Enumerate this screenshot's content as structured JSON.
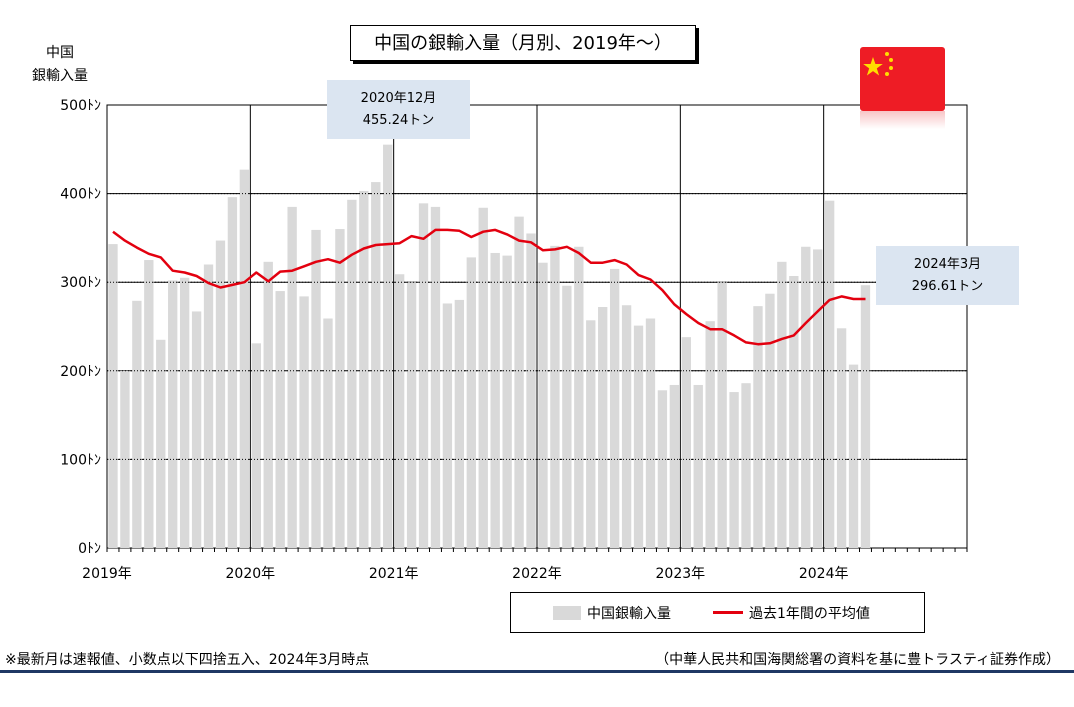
{
  "title": "中国の銀輸入量（月別、2019年～）",
  "ylabel_line1": "中国",
  "ylabel_line2": "銀輸入量",
  "callout_peak": {
    "line1": "2020年12月",
    "line2": "455.24トン"
  },
  "callout_latest": {
    "line1": "2024年3月",
    "line2": "296.61トン"
  },
  "legend": {
    "bars": "中国銀輸入量",
    "line": "過去1年間の平均値"
  },
  "footnote": "※最新月は速報値、小数点以下四捨五入、2024年3月時点",
  "source": "（中華人民共和国海関総署の資料を基に豊トラスティ証券作成）",
  "colors": {
    "bars": "#d9d9d9",
    "line": "#e3000f",
    "callout": "#dbe5f1",
    "flag": "#ee1c25",
    "star": "#ffde00",
    "rule": "#1f3864"
  },
  "icon": "china-flag",
  "chart_data": {
    "type": "bar",
    "x_tick_labels": [
      "2019年",
      "2020年",
      "2021年",
      "2022年",
      "2023年",
      "2024年"
    ],
    "y_tick_labels": [
      "0ﾄﾝ",
      "100ﾄﾝ",
      "200ﾄﾝ",
      "300ﾄﾝ",
      "400ﾄﾝ",
      "500ﾄﾝ"
    ],
    "ylim": [
      0,
      500
    ],
    "x_range_months": [
      "2019-01",
      "2024-12"
    ],
    "grid": true,
    "legend_position": "bottom-right",
    "series": [
      {
        "name": "中国銀輸入量",
        "type": "bar",
        "values": [
          343,
          200,
          279,
          325,
          235,
          302,
          305,
          267,
          320,
          347,
          396,
          427,
          231,
          323,
          290,
          385,
          284,
          359,
          259,
          360,
          393,
          403,
          413,
          455.24,
          309,
          300,
          389,
          385,
          276,
          280,
          328,
          384,
          333,
          330,
          374,
          355,
          322,
          341,
          296,
          340,
          257,
          272,
          315,
          274,
          251,
          259,
          178,
          184,
          238,
          184,
          256,
          300,
          176,
          186,
          273,
          287,
          323,
          307,
          340,
          337,
          392,
          248,
          207,
          296.61
        ]
      },
      {
        "name": "過去1年間の平均値",
        "type": "line",
        "values": [
          357,
          347,
          339,
          332,
          328,
          313,
          311,
          307,
          299,
          294,
          297,
          300,
          311,
          301,
          312,
          313,
          318,
          323,
          326,
          322,
          331,
          338,
          342,
          343,
          344,
          352,
          349,
          359,
          359,
          358,
          351,
          357,
          359,
          354,
          347,
          345,
          336,
          337,
          340,
          333,
          322,
          322,
          325,
          320,
          308,
          303,
          291,
          275,
          264,
          254,
          247,
          247,
          240,
          232,
          230,
          231,
          236,
          240,
          254,
          267,
          280,
          284,
          281,
          281
        ]
      }
    ]
  }
}
